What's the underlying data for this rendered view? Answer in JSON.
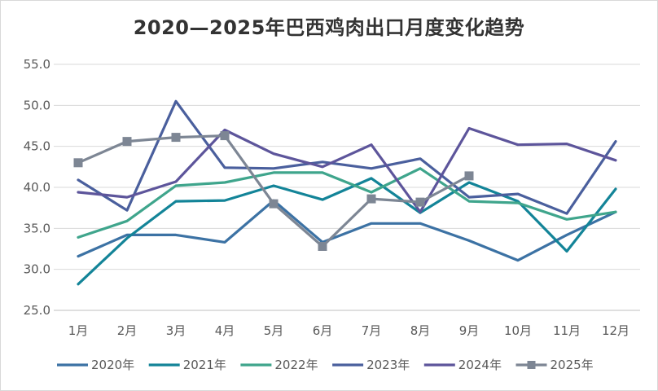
{
  "chart_data": {
    "type": "line",
    "title": "2020—2025年巴西鸡肉出口月度变化趋势",
    "xlabel": "",
    "ylabel": "",
    "categories": [
      "1月",
      "2月",
      "3月",
      "4月",
      "5月",
      "6月",
      "7月",
      "8月",
      "9月",
      "10月",
      "11月",
      "12月"
    ],
    "ylim": [
      25,
      55
    ],
    "yticks": [
      "25.0",
      "30.0",
      "35.0",
      "40.0",
      "45.0",
      "50.0",
      "55.0"
    ],
    "grid": true,
    "legend": "bottom",
    "series": [
      {
        "name": "2020年",
        "color": "#3c72a4",
        "marker": "none",
        "values": [
          31.6,
          34.2,
          34.2,
          33.3,
          38.4,
          33.3,
          35.6,
          35.6,
          33.5,
          31.1,
          34.2,
          37.0
        ]
      },
      {
        "name": "2021年",
        "color": "#138498",
        "marker": "none",
        "values": [
          28.2,
          33.8,
          38.3,
          38.4,
          40.2,
          38.5,
          41.1,
          36.9,
          40.6,
          38.3,
          32.2,
          39.8
        ]
      },
      {
        "name": "2022年",
        "color": "#3fa58c",
        "marker": "none",
        "values": [
          33.9,
          35.9,
          40.2,
          40.6,
          41.8,
          41.8,
          39.4,
          42.3,
          38.3,
          38.1,
          36.1,
          37.0
        ]
      },
      {
        "name": "2023年",
        "color": "#4a5f9d",
        "marker": "none",
        "values": [
          40.9,
          37.2,
          50.5,
          42.4,
          42.3,
          43.1,
          42.3,
          43.5,
          38.8,
          39.2,
          36.8,
          45.6
        ]
      },
      {
        "name": "2024年",
        "color": "#5d559b",
        "marker": "none",
        "values": [
          39.4,
          38.8,
          40.7,
          47.0,
          44.1,
          42.5,
          45.2,
          37.0,
          47.2,
          45.2,
          45.3,
          43.3
        ]
      },
      {
        "name": "2025年",
        "color": "#7d8694",
        "marker": "square",
        "values": [
          43.0,
          45.6,
          46.1,
          46.3,
          38.0,
          32.8,
          38.6,
          38.2,
          41.4,
          null,
          null,
          null
        ]
      }
    ]
  }
}
